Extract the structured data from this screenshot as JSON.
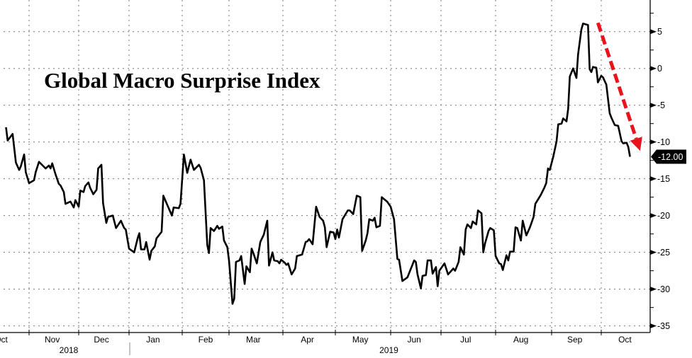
{
  "chart_data": {
    "type": "line",
    "title": "Global Macro Surprise Index",
    "xlabel": "",
    "ylabel": "",
    "ylim": [
      -35.9,
      9.3
    ],
    "y_axis_side": "right",
    "yticks": [
      5,
      0,
      -5,
      -10,
      -15,
      -20,
      -25,
      -30,
      -35
    ],
    "ytick_labels": [
      "5",
      "0",
      "-5",
      "-10",
      "-15",
      "-20",
      "-25",
      "-30",
      "-35"
    ],
    "xtick_labels": [
      {
        "label": "Oct",
        "date": "2018-10-15"
      },
      {
        "label": "Nov",
        "date": "2018-11-15"
      },
      {
        "label": "Dec",
        "date": "2018-12-15"
      },
      {
        "label": "Jan",
        "date": "2019-01-15"
      },
      {
        "label": "Feb",
        "date": "2019-02-15"
      },
      {
        "label": "Mar",
        "date": "2019-03-15"
      },
      {
        "label": "Apr",
        "date": "2019-04-15"
      },
      {
        "label": "May",
        "date": "2019-05-15"
      },
      {
        "label": "Jun",
        "date": "2019-06-15"
      },
      {
        "label": "Jul",
        "date": "2019-07-15"
      },
      {
        "label": "Aug",
        "date": "2019-08-15"
      },
      {
        "label": "Sep",
        "date": "2019-09-15"
      },
      {
        "label": "Oct",
        "date": "2019-10-15"
      }
    ],
    "year_labels": [
      {
        "label": "2018",
        "date": "2018-11-25"
      },
      {
        "label": "2019",
        "date": "2019-05-31"
      }
    ],
    "grid": true,
    "line_color": "#000000",
    "last_value_label": "-12.00",
    "annotation": {
      "type": "dashed-arrow",
      "color": "#e8141b",
      "from": {
        "date": "2019-09-29",
        "value": 6.2
      },
      "to": {
        "date": "2019-10-24",
        "value": -11.2
      }
    },
    "series": [
      {
        "x": [
          "2018-10-18",
          "2018-10-19",
          "2018-10-22",
          "2018-10-24",
          "2018-10-26",
          "2018-10-27",
          "2018-10-29",
          "2018-10-30",
          "2018-11-01",
          "2018-11-04",
          "2018-11-05",
          "2018-11-07",
          "2018-11-11",
          "2018-11-13",
          "2018-11-14",
          "2018-11-15",
          "2018-11-17",
          "2018-11-19",
          "2018-11-20",
          "2018-11-22",
          "2018-11-23",
          "2018-11-26",
          "2018-11-28",
          "2018-11-29",
          "2018-12-01",
          "2018-12-02",
          "2018-12-04",
          "2018-12-05",
          "2018-12-07",
          "2018-12-08",
          "2018-12-10",
          "2018-12-12",
          "2018-12-13",
          "2018-12-15",
          "2018-12-16",
          "2018-12-18",
          "2018-12-19",
          "2018-12-22",
          "2018-12-24",
          "2018-12-27",
          "2018-12-29",
          "2018-12-30",
          "2019-01-01",
          "2019-01-04",
          "2019-01-06",
          "2019-01-07",
          "2019-01-08",
          "2019-01-10",
          "2019-01-11",
          "2019-01-13",
          "2019-01-14",
          "2019-01-16",
          "2019-01-17",
          "2019-01-20",
          "2019-01-21",
          "2019-01-23",
          "2019-01-26",
          "2019-01-27",
          "2019-01-30",
          "2019-01-31",
          "2019-02-02",
          "2019-02-04",
          "2019-02-06",
          "2019-02-08",
          "2019-02-11",
          "2019-02-12",
          "2019-02-14",
          "2019-02-16",
          "2019-02-17",
          "2019-02-18",
          "2019-02-20",
          "2019-02-22",
          "2019-02-23",
          "2019-02-25",
          "2019-02-26",
          "2019-02-28",
          "2019-03-01",
          "2019-03-03",
          "2019-03-04",
          "2019-03-05",
          "2019-03-07",
          "2019-03-08",
          "2019-03-10",
          "2019-03-11",
          "2019-03-13",
          "2019-03-14",
          "2019-03-15",
          "2019-03-17",
          "2019-03-19",
          "2019-03-21",
          "2019-03-23",
          "2019-03-24",
          "2019-03-26",
          "2019-03-27",
          "2019-03-29",
          "2019-03-30",
          "2019-03-31",
          "2019-04-02",
          "2019-04-03",
          "2019-04-04",
          "2019-04-06",
          "2019-04-08",
          "2019-04-09",
          "2019-04-12",
          "2019-04-14",
          "2019-04-15",
          "2019-04-16",
          "2019-04-18",
          "2019-04-20",
          "2019-04-22",
          "2019-04-24",
          "2019-04-25",
          "2019-04-26",
          "2019-04-28",
          "2019-04-30",
          "2019-05-01",
          "2019-05-02",
          "2019-05-03",
          "2019-05-05",
          "2019-05-08",
          "2019-05-09",
          "2019-05-11",
          "2019-05-13",
          "2019-05-15",
          "2019-05-16",
          "2019-05-18",
          "2019-05-19",
          "2019-05-20",
          "2019-05-22",
          "2019-05-23",
          "2019-05-24",
          "2019-05-26",
          "2019-05-27",
          "2019-05-29",
          "2019-05-30",
          "2019-06-01",
          "2019-06-03",
          "2019-06-05",
          "2019-06-06",
          "2019-06-08",
          "2019-06-11",
          "2019-06-15",
          "2019-06-16",
          "2019-06-17",
          "2019-06-19",
          "2019-06-20",
          "2019-06-22",
          "2019-06-23",
          "2019-06-25",
          "2019-06-26",
          "2019-06-28",
          "2019-06-29",
          "2019-06-30",
          "2019-07-03",
          "2019-07-05",
          "2019-07-08",
          "2019-07-09",
          "2019-07-11",
          "2019-07-12",
          "2019-07-14",
          "2019-07-15",
          "2019-07-16",
          "2019-07-18",
          "2019-07-19",
          "2019-07-21",
          "2019-07-22",
          "2019-07-24",
          "2019-07-25",
          "2019-07-26",
          "2019-07-28",
          "2019-07-29",
          "2019-07-31",
          "2019-08-01",
          "2019-08-03",
          "2019-08-04",
          "2019-08-05",
          "2019-08-07",
          "2019-08-08",
          "2019-08-09",
          "2019-08-11",
          "2019-08-12",
          "2019-08-13",
          "2019-08-15",
          "2019-08-16",
          "2019-08-18",
          "2019-08-20",
          "2019-08-22",
          "2019-08-23",
          "2019-08-26",
          "2019-08-28",
          "2019-08-29",
          "2019-08-30",
          "2019-08-31",
          "2019-09-02",
          "2019-09-04",
          "2019-09-05",
          "2019-09-07",
          "2019-09-08",
          "2019-09-10",
          "2019-09-11",
          "2019-09-12",
          "2019-09-14",
          "2019-09-16",
          "2019-09-17",
          "2019-09-19",
          "2019-09-20",
          "2019-09-23",
          "2019-09-24",
          "2019-09-25",
          "2019-09-26",
          "2019-09-28",
          "2019-09-29",
          "2019-10-01",
          "2019-10-02",
          "2019-10-04",
          "2019-10-06",
          "2019-10-07",
          "2019-10-09",
          "2019-10-11",
          "2019-10-13",
          "2019-10-14",
          "2019-10-16",
          "2019-10-17",
          "2019-10-18"
        ],
        "y": [
          -8.0,
          -9.8,
          -8.9,
          -12.8,
          -13.8,
          -13.3,
          -11.7,
          -14.1,
          -15.6,
          -15.2,
          -14.1,
          -12.7,
          -13.6,
          -13.2,
          -13.6,
          -12.9,
          -14.4,
          -15.7,
          -15.9,
          -16.8,
          -18.4,
          -18.1,
          -18.9,
          -17.9,
          -18.8,
          -16.6,
          -16.8,
          -16.0,
          -15.5,
          -16.2,
          -17.1,
          -16.5,
          -13.6,
          -13.1,
          -18.3,
          -21.0,
          -20.2,
          -20.0,
          -21.7,
          -20.7,
          -21.7,
          -21.9,
          -24.5,
          -25.0,
          -23.1,
          -22.4,
          -24.6,
          -24.6,
          -23.6,
          -26.0,
          -24.8,
          -24.2,
          -23.1,
          -22.2,
          -17.3,
          -18.4,
          -20.0,
          -18.9,
          -19.0,
          -18.4,
          -11.7,
          -14.2,
          -12.4,
          -13.8,
          -13.1,
          -13.5,
          -15.2,
          -24.0,
          -25.1,
          -21.7,
          -22.1,
          -21.4,
          -21.8,
          -21.5,
          -23.4,
          -24.3,
          -26.1,
          -32.0,
          -31.3,
          -26.3,
          -26.1,
          -25.5,
          -29.3,
          -26.9,
          -27.7,
          -24.5,
          -25.1,
          -26.5,
          -23.6,
          -22.6,
          -20.7,
          -26.8,
          -25.0,
          -26.1,
          -26.2,
          -26.5,
          -26.0,
          -26.4,
          -26.7,
          -26.5,
          -28.0,
          -27.2,
          -25.5,
          -25.3,
          -23.6,
          -23.5,
          -23.2,
          -23.9,
          -18.8,
          -20.2,
          -20.7,
          -21.6,
          -24.3,
          -22.2,
          -22.3,
          -23.2,
          -21.9,
          -23.0,
          -20.5,
          -19.3,
          -19.3,
          -19.8,
          -17.3,
          -17.5,
          -24.8,
          -23.4,
          -22.4,
          -20.5,
          -20.7,
          -20.3,
          -21.6,
          -21.4,
          -17.5,
          -17.9,
          -18.1,
          -18.8,
          -20.5,
          -25.9,
          -26.0,
          -28.9,
          -28.4,
          -26.1,
          -26.3,
          -28.0,
          -29.9,
          -28.2,
          -28.1,
          -26.1,
          -26.1,
          -27.9,
          -27.0,
          -29.6,
          -27.5,
          -26.5,
          -28.0,
          -27.2,
          -27.5,
          -26.3,
          -24.3,
          -25.3,
          -21.9,
          -21.2,
          -21.7,
          -20.8,
          -21.2,
          -19.3,
          -19.7,
          -25.0,
          -23.8,
          -22.1,
          -21.7,
          -22.0,
          -25.5,
          -26.5,
          -26.6,
          -27.4,
          -25.4,
          -26.1,
          -24.9,
          -24.9,
          -21.6,
          -21.7,
          -23.4,
          -20.7,
          -22.7,
          -21.6,
          -20.2,
          -18.4,
          -17.2,
          -16.2,
          -15.6,
          -13.6,
          -13.8,
          -12.0,
          -9.9,
          -7.6,
          -7.5,
          -6.8,
          -7.2,
          -5.5,
          -1.1,
          0.0,
          -1.3,
          1.9,
          5.3,
          6.1,
          5.9,
          -0.1,
          -0.5,
          0.2,
          0.1,
          -1.9,
          -1.0,
          -1.2,
          -2.2,
          -6.1,
          -6.7,
          -7.7,
          -7.8,
          -9.9,
          -10.2,
          -10.1,
          -10.7,
          -12.0
        ]
      }
    ]
  }
}
